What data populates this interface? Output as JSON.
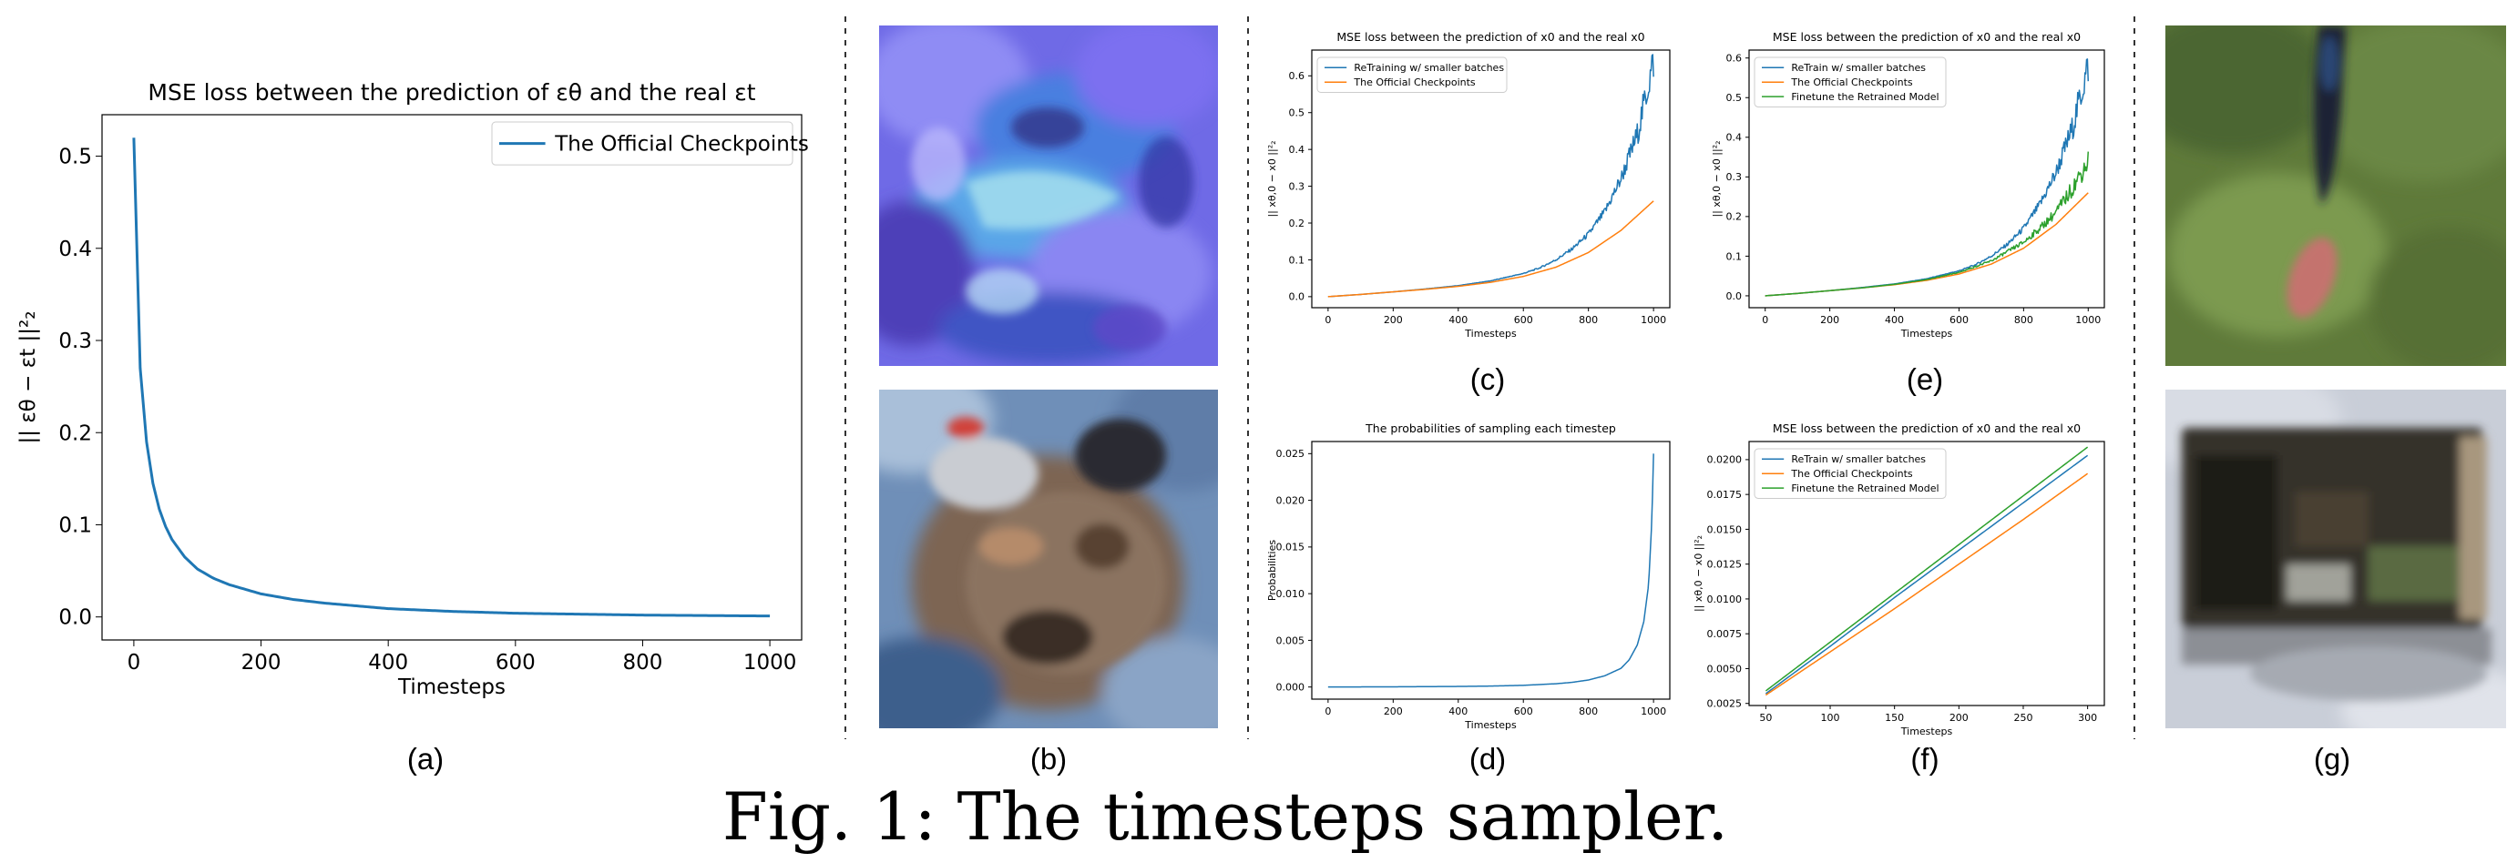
{
  "figure": {
    "caption": "Fig. 1: The timesteps sampler.",
    "panel_labels": [
      "(a)",
      "(b)",
      "(c)",
      "(d)",
      "(e)",
      "(f)",
      "(g)"
    ]
  },
  "photos": {
    "b_top": "abstract-blue-texture",
    "b_bottom": "distorted-animal-face",
    "g_top": "grass-field-with-dark-object",
    "g_bottom": "metallic-machine-object"
  },
  "chart_data": [
    {
      "id": "a",
      "type": "line",
      "title": "MSE loss between the prediction of εθ and the real εt",
      "xlabel": "Timesteps",
      "ylabel": "|| εθ − εt ||²₂",
      "xlim": [
        -50,
        1050
      ],
      "ylim": [
        -0.025,
        0.545
      ],
      "xticks": [
        0,
        200,
        400,
        600,
        800,
        1000
      ],
      "yticks": [
        0.0,
        0.1,
        0.2,
        0.3,
        0.4,
        0.5
      ],
      "legend": "top-right",
      "grid": false,
      "series": [
        {
          "name": "The Official Checkpoints",
          "color": "#1f77b4",
          "x": [
            0,
            10,
            20,
            30,
            40,
            50,
            60,
            80,
            100,
            125,
            150,
            200,
            250,
            300,
            400,
            500,
            600,
            700,
            800,
            900,
            1000
          ],
          "y": [
            0.52,
            0.27,
            0.19,
            0.145,
            0.117,
            0.098,
            0.084,
            0.065,
            0.052,
            0.042,
            0.035,
            0.025,
            0.019,
            0.015,
            0.009,
            0.006,
            0.004,
            0.003,
            0.002,
            0.0015,
            0.001
          ]
        }
      ]
    },
    {
      "id": "c",
      "type": "line",
      "title": "MSE loss between the prediction of x0 and the real x0",
      "xlabel": "Timesteps",
      "ylabel": "|| xθ,0 − x0 ||²₂",
      "xlim": [
        -50,
        1050
      ],
      "ylim": [
        -0.03,
        0.67
      ],
      "xticks": [
        0,
        200,
        400,
        600,
        800,
        1000
      ],
      "yticks": [
        0.0,
        0.1,
        0.2,
        0.3,
        0.4,
        0.5,
        0.6
      ],
      "legend": "top-left",
      "grid": false,
      "series": [
        {
          "name": "ReTraining w/ smaller batches",
          "color": "#1f77b4",
          "noisy": true,
          "x": [
            0,
            100,
            200,
            300,
            400,
            500,
            600,
            650,
            700,
            750,
            800,
            850,
            900,
            950,
            1000
          ],
          "y": [
            0.0,
            0.006,
            0.013,
            0.021,
            0.03,
            0.043,
            0.063,
            0.078,
            0.1,
            0.13,
            0.17,
            0.23,
            0.32,
            0.44,
            0.64
          ]
        },
        {
          "name": "The Official Checkpoints",
          "color": "#ff7f0e",
          "x": [
            0,
            100,
            200,
            300,
            400,
            500,
            600,
            700,
            800,
            900,
            1000
          ],
          "y": [
            0.0,
            0.006,
            0.013,
            0.02,
            0.028,
            0.039,
            0.055,
            0.08,
            0.12,
            0.18,
            0.26
          ]
        }
      ]
    },
    {
      "id": "d",
      "type": "line",
      "title": "The probabilities of sampling each timestep",
      "xlabel": "Timesteps",
      "ylabel": "Probabilities",
      "xlim": [
        -50,
        1050
      ],
      "ylim": [
        -0.0013,
        0.0263
      ],
      "xticks": [
        0,
        200,
        400,
        600,
        800,
        1000
      ],
      "yticks": [
        0.0,
        0.005,
        0.01,
        0.015,
        0.02,
        0.025
      ],
      "ytick_labels": [
        "0.000",
        "0.005",
        "0.010",
        "0.015",
        "0.020",
        "0.025"
      ],
      "grid": false,
      "series": [
        {
          "color": "#1f77b4",
          "x": [
            0,
            200,
            400,
            500,
            600,
            700,
            750,
            800,
            850,
            900,
            925,
            950,
            970,
            985,
            995,
            1000
          ],
          "y": [
            0.0,
            2e-05,
            6e-05,
            0.0001,
            0.00018,
            0.00035,
            0.0005,
            0.00075,
            0.0012,
            0.002,
            0.0029,
            0.0045,
            0.007,
            0.011,
            0.018,
            0.025
          ]
        }
      ]
    },
    {
      "id": "e",
      "type": "line",
      "title": "MSE loss between the prediction of x0 and the real x0",
      "xlabel": "Timesteps",
      "ylabel": "|| xθ,0 − x0 ||²₂",
      "xlim": [
        -50,
        1050
      ],
      "ylim": [
        -0.03,
        0.62
      ],
      "xticks": [
        0,
        200,
        400,
        600,
        800,
        1000
      ],
      "yticks": [
        0.0,
        0.1,
        0.2,
        0.3,
        0.4,
        0.5,
        0.6
      ],
      "legend": "top-left",
      "grid": false,
      "series": [
        {
          "name": "ReTrain w/ smaller batches",
          "color": "#1f77b4",
          "noisy": true,
          "x": [
            0,
            100,
            200,
            300,
            400,
            500,
            600,
            650,
            700,
            750,
            800,
            850,
            900,
            950,
            1000
          ],
          "y": [
            0.0,
            0.006,
            0.013,
            0.021,
            0.03,
            0.043,
            0.063,
            0.078,
            0.1,
            0.13,
            0.17,
            0.23,
            0.31,
            0.42,
            0.58
          ]
        },
        {
          "name": "The Official Checkpoints",
          "color": "#ff7f0e",
          "x": [
            0,
            100,
            200,
            300,
            400,
            500,
            600,
            700,
            800,
            900,
            1000
          ],
          "y": [
            0.0,
            0.006,
            0.013,
            0.02,
            0.028,
            0.039,
            0.055,
            0.08,
            0.12,
            0.18,
            0.26
          ]
        },
        {
          "name": "Finetune the Retrained Model",
          "color": "#2ca02c",
          "noisy": true,
          "x": [
            0,
            100,
            200,
            300,
            400,
            500,
            600,
            700,
            800,
            850,
            900,
            950,
            1000
          ],
          "y": [
            0.0,
            0.006,
            0.013,
            0.02,
            0.029,
            0.041,
            0.059,
            0.088,
            0.135,
            0.17,
            0.21,
            0.27,
            0.34
          ]
        }
      ]
    },
    {
      "id": "f",
      "type": "line",
      "title": "MSE loss between the prediction of x0 and the real x0",
      "xlabel": "Timesteps",
      "ylabel": "|| xθ,0 − x0 ||²₂",
      "xlim": [
        37,
        313
      ],
      "ylim": [
        0.00235,
        0.0213
      ],
      "xticks": [
        50,
        100,
        150,
        200,
        250,
        300
      ],
      "yticks": [
        0.0025,
        0.005,
        0.0075,
        0.01,
        0.0125,
        0.015,
        0.0175,
        0.02
      ],
      "ytick_labels": [
        "0.0025",
        "0.0050",
        "0.0075",
        "0.0100",
        "0.0125",
        "0.0150",
        "0.0175",
        "0.0200"
      ],
      "legend": "top-left",
      "grid": false,
      "series": [
        {
          "name": "ReTrain w/ smaller batches",
          "color": "#1f77b4",
          "x": [
            50,
            100,
            150,
            200,
            250,
            300
          ],
          "y": [
            0.0032,
            0.0066,
            0.0101,
            0.0135,
            0.0169,
            0.0203
          ]
        },
        {
          "name": "The Official Checkpoints",
          "color": "#ff7f0e",
          "x": [
            50,
            100,
            150,
            200,
            250,
            300
          ],
          "y": [
            0.0031,
            0.0062,
            0.0093,
            0.0125,
            0.0157,
            0.019
          ]
        },
        {
          "name": "Finetune the Retrained Model",
          "color": "#2ca02c",
          "x": [
            50,
            100,
            150,
            200,
            250,
            300
          ],
          "y": [
            0.0034,
            0.0069,
            0.0104,
            0.0139,
            0.0174,
            0.0209
          ]
        }
      ]
    }
  ]
}
